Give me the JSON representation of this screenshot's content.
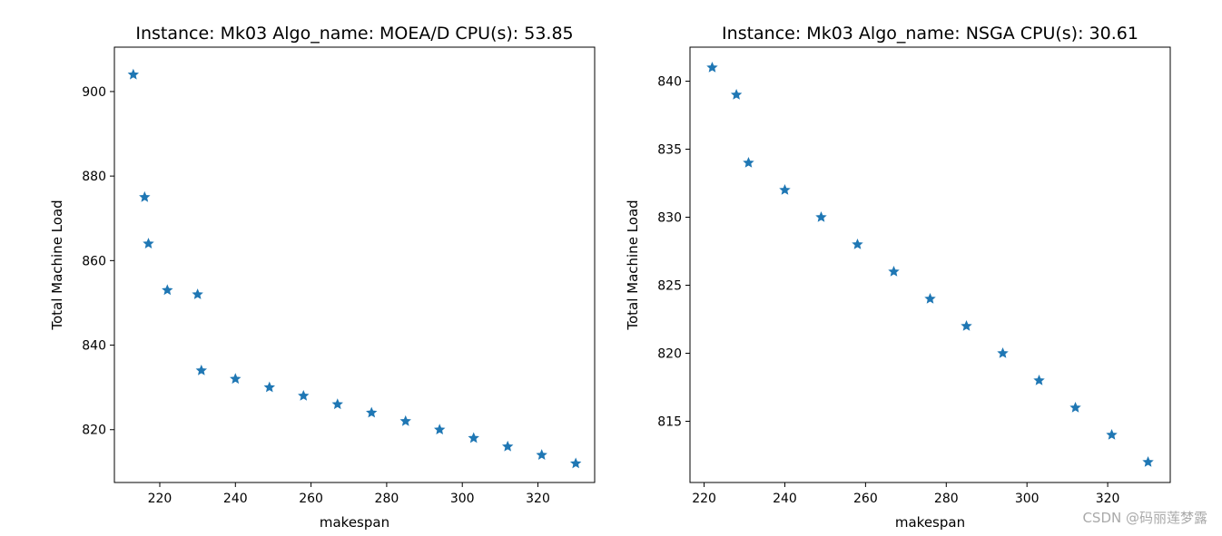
{
  "chart_data": [
    {
      "type": "scatter",
      "title": "Instance: Mk03 Algo_name: MOEA/D CPU(s): 53.85",
      "xlabel": "makespan",
      "ylabel": "Total Machine Load",
      "xlim": [
        208,
        335
      ],
      "ylim": [
        807.5,
        910.5
      ],
      "xticks": [
        220,
        240,
        260,
        280,
        300,
        320
      ],
      "yticks": [
        820,
        840,
        860,
        880,
        900
      ],
      "grid": false,
      "marker": "star",
      "color": "#1f77b4",
      "x": [
        213,
        216,
        217,
        222,
        230,
        231,
        240,
        249,
        258,
        267,
        276,
        285,
        294,
        303,
        312,
        321,
        330
      ],
      "y": [
        904,
        875,
        864,
        853,
        852,
        834,
        832,
        830,
        828,
        826,
        824,
        822,
        820,
        818,
        816,
        814,
        812
      ]
    },
    {
      "type": "scatter",
      "title": "Instance: Mk03 Algo_name: NSGA CPU(s): 30.61",
      "xlabel": "makespan",
      "ylabel": "Total Machine Load",
      "xlim": [
        216.5,
        335.5
      ],
      "ylim": [
        810.5,
        842.5
      ],
      "xticks": [
        220,
        240,
        260,
        280,
        300,
        320
      ],
      "yticks": [
        815,
        820,
        825,
        830,
        835,
        840
      ],
      "grid": false,
      "marker": "star",
      "color": "#1f77b4",
      "x": [
        222,
        228,
        231,
        240,
        249,
        258,
        267,
        276,
        285,
        294,
        303,
        312,
        321,
        330
      ],
      "y": [
        841,
        839,
        834,
        832,
        830,
        828,
        826,
        824,
        822,
        820,
        818,
        816,
        814,
        812
      ]
    }
  ],
  "watermark": "CSDN @码丽莲梦露"
}
